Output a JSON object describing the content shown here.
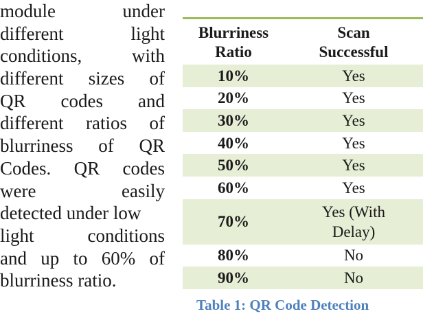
{
  "body_text": {
    "lines": [
      [
        "module",
        "under"
      ],
      [
        "different",
        "light"
      ],
      [
        "conditions,",
        "with"
      ],
      [
        "different",
        "sizes",
        "of"
      ],
      [
        "QR",
        "codes",
        "and"
      ],
      [
        "different",
        "ratios",
        "of"
      ],
      [
        "blurriness",
        "of",
        "QR"
      ],
      [
        "Codes.",
        "QR",
        "codes"
      ],
      [
        "were",
        "easily"
      ],
      [
        "detected under low"
      ],
      [
        "light",
        "conditions"
      ],
      [
        "and",
        "up",
        "to",
        "60%",
        "of"
      ],
      [
        "blurriness ratio."
      ]
    ]
  },
  "table": {
    "headers": {
      "ratio_line1": "Blurriness",
      "ratio_line2": "Ratio",
      "scan_line1": "Scan",
      "scan_line2": "Successful"
    },
    "rows": [
      {
        "ratio": "10%",
        "result": "Yes"
      },
      {
        "ratio": "20%",
        "result": "Yes"
      },
      {
        "ratio": "30%",
        "result": "Yes"
      },
      {
        "ratio": "40%",
        "result": "Yes"
      },
      {
        "ratio": "50%",
        "result": "Yes"
      },
      {
        "ratio": "60%",
        "result": "Yes"
      },
      {
        "ratio": "70%",
        "result_line1": "Yes (With",
        "result_line2": "Delay)"
      },
      {
        "ratio": "80%",
        "result": "No"
      },
      {
        "ratio": "90%",
        "result": "No"
      }
    ],
    "caption": "Table 1: QR Code Detection",
    "colors": {
      "rule": "#9bbb59",
      "row_shade": "#e6eed5",
      "caption": "#4f81bd"
    }
  }
}
